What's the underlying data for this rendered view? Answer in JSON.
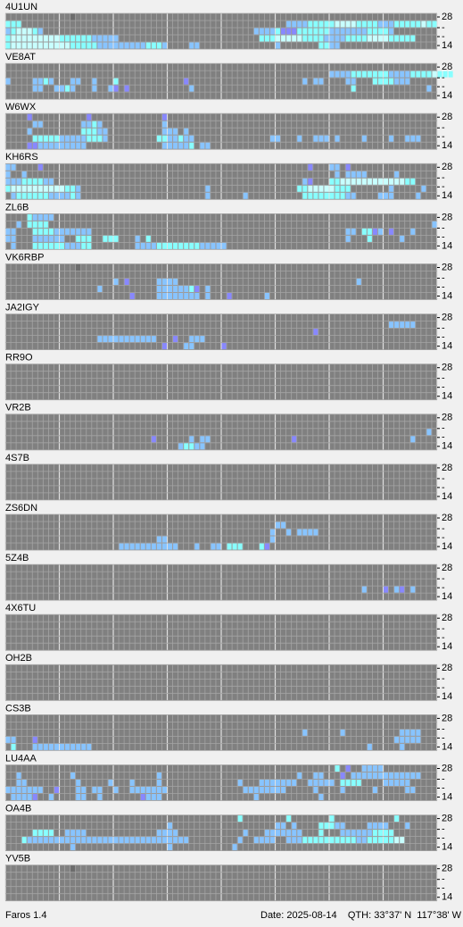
{
  "band_axis": [
    "28",
    "-",
    "-",
    "14"
  ],
  "beacons": [
    {
      "call": "4U1UN",
      "segments": [
        [
          0,
          12,
          "0"
        ],
        [
          1,
          0,
          "333"
        ],
        [
          1,
          52,
          "2222333334444333322233333433"
        ],
        [
          2,
          0,
          "2344432"
        ],
        [
          2,
          46,
          "22223111333333222222233332"
        ],
        [
          3,
          0,
          "344444444433333322222"
        ],
        [
          3,
          47,
          "33344444333322223333444433333"
        ],
        [
          4,
          0,
          "34444444444433333222221"
        ],
        [
          4,
          22,
          "22223332"
        ],
        [
          4,
          34,
          "22"
        ],
        [
          4,
          50,
          "2"
        ],
        [
          4,
          58,
          "3322"
        ]
      ]
    },
    {
      "call": "VE8AT",
      "segments": [
        [
          1,
          60,
          "22223333333222233334333"
        ],
        [
          2,
          0,
          "2"
        ],
        [
          2,
          5,
          "2232"
        ],
        [
          2,
          12,
          "22"
        ],
        [
          2,
          16,
          "2"
        ],
        [
          2,
          20,
          "3"
        ],
        [
          2,
          33,
          "1"
        ],
        [
          2,
          55,
          "2"
        ],
        [
          2,
          57,
          "22"
        ],
        [
          2,
          63,
          "22"
        ],
        [
          2,
          68,
          "3333222"
        ],
        [
          3,
          5,
          "22"
        ],
        [
          3,
          9,
          "2232"
        ],
        [
          3,
          16,
          "2"
        ],
        [
          3,
          19,
          "21"
        ],
        [
          3,
          22,
          "1"
        ],
        [
          3,
          34,
          "2"
        ],
        [
          3,
          64,
          "3"
        ],
        [
          3,
          78,
          "2"
        ]
      ]
    },
    {
      "call": "W6WX",
      "segments": [
        [
          0,
          4,
          "1"
        ],
        [
          0,
          15,
          "1"
        ],
        [
          0,
          29,
          "1"
        ],
        [
          1,
          5,
          "22"
        ],
        [
          1,
          14,
          "2232"
        ],
        [
          1,
          29,
          "2"
        ],
        [
          2,
          4,
          "2"
        ],
        [
          2,
          14,
          "33322"
        ],
        [
          2,
          29,
          "222"
        ],
        [
          2,
          33,
          "2"
        ],
        [
          3,
          5,
          "33333222223332"
        ],
        [
          3,
          28,
          "3322322"
        ],
        [
          3,
          49,
          "22"
        ],
        [
          3,
          54,
          "2"
        ],
        [
          3,
          57,
          "222"
        ],
        [
          3,
          61,
          "2"
        ],
        [
          3,
          66,
          "2"
        ],
        [
          3,
          71,
          "2"
        ],
        [
          3,
          74,
          "222"
        ],
        [
          4,
          4,
          "11222222222"
        ],
        [
          4,
          29,
          "222223"
        ],
        [
          4,
          36,
          "22"
        ]
      ]
    },
    {
      "call": "KH6RS",
      "segments": [
        [
          0,
          0,
          "22"
        ],
        [
          0,
          6,
          "1"
        ],
        [
          0,
          56,
          "1"
        ],
        [
          0,
          60,
          "22"
        ],
        [
          0,
          63,
          "1"
        ],
        [
          1,
          0,
          "2"
        ],
        [
          1,
          3,
          "2"
        ],
        [
          1,
          61,
          "2"
        ],
        [
          1,
          63,
          "2222"
        ],
        [
          1,
          72,
          "2"
        ],
        [
          2,
          0,
          "222333322"
        ],
        [
          2,
          55,
          "21"
        ],
        [
          2,
          60,
          "3344444444444433"
        ],
        [
          3,
          0,
          "34444444444332"
        ],
        [
          3,
          37,
          "2"
        ],
        [
          3,
          54,
          "3344444333"
        ],
        [
          3,
          71,
          "2"
        ],
        [
          3,
          77,
          "2"
        ],
        [
          4,
          1,
          "2333333222232"
        ],
        [
          4,
          37,
          "2"
        ],
        [
          4,
          44,
          "2"
        ],
        [
          4,
          55,
          "3333333322"
        ],
        [
          4,
          69,
          "222"
        ],
        [
          4,
          76,
          "2"
        ]
      ]
    },
    {
      "call": "ZL6B",
      "segments": [
        [
          0,
          4,
          "32222"
        ],
        [
          1,
          2,
          "2"
        ],
        [
          1,
          4,
          "3333"
        ],
        [
          1,
          79,
          "2"
        ],
        [
          2,
          0,
          "22"
        ],
        [
          2,
          5,
          "33332222222"
        ],
        [
          2,
          63,
          "22"
        ],
        [
          2,
          66,
          "3312"
        ],
        [
          2,
          71,
          "1"
        ],
        [
          2,
          75,
          "2"
        ],
        [
          3,
          0,
          "22"
        ],
        [
          3,
          5,
          "222222"
        ],
        [
          3,
          13,
          "333"
        ],
        [
          3,
          18,
          "333"
        ],
        [
          3,
          24,
          "2"
        ],
        [
          3,
          26,
          "3"
        ],
        [
          3,
          63,
          "2"
        ],
        [
          3,
          67,
          "3"
        ],
        [
          3,
          73,
          "2"
        ],
        [
          4,
          1,
          "2"
        ],
        [
          4,
          5,
          "33333322233"
        ],
        [
          4,
          24,
          "22223333333322222"
        ]
      ]
    },
    {
      "call": "VK6RBP",
      "segments": [
        [
          0,
          13,
          "0"
        ],
        [
          2,
          20,
          "2"
        ],
        [
          2,
          22,
          "1"
        ],
        [
          2,
          28,
          "2222"
        ],
        [
          2,
          65,
          "2"
        ],
        [
          3,
          17,
          "2"
        ],
        [
          3,
          28,
          "2222223"
        ],
        [
          3,
          35,
          "1"
        ],
        [
          3,
          37,
          "2"
        ],
        [
          4,
          23,
          "1"
        ],
        [
          4,
          28,
          "22222222"
        ],
        [
          4,
          37,
          "2"
        ],
        [
          4,
          41,
          "1"
        ],
        [
          4,
          48,
          "2"
        ]
      ]
    },
    {
      "call": "JA2IGY",
      "segments": [
        [
          1,
          71,
          "22222"
        ],
        [
          2,
          57,
          "1"
        ],
        [
          3,
          17,
          "22222222222"
        ],
        [
          3,
          31,
          "1"
        ],
        [
          3,
          34,
          "222"
        ],
        [
          4,
          29,
          "1"
        ],
        [
          4,
          33,
          "22"
        ],
        [
          4,
          40,
          "1"
        ]
      ]
    },
    {
      "call": "RR9O",
      "segments": []
    },
    {
      "call": "VR2B",
      "segments": [
        [
          2,
          78,
          "2"
        ],
        [
          3,
          27,
          "1"
        ],
        [
          3,
          34,
          "2"
        ],
        [
          3,
          36,
          "22"
        ],
        [
          3,
          53,
          "1"
        ],
        [
          3,
          75,
          "2"
        ],
        [
          4,
          32,
          "23322"
        ]
      ]
    },
    {
      "call": "4S7B",
      "segments": []
    },
    {
      "call": "ZS6DN",
      "segments": [
        [
          1,
          50,
          "22"
        ],
        [
          2,
          49,
          "2"
        ],
        [
          2,
          52,
          "2"
        ],
        [
          2,
          54,
          "2222"
        ],
        [
          3,
          28,
          "22"
        ],
        [
          3,
          49,
          "2"
        ],
        [
          4,
          21,
          "2222222222"
        ],
        [
          4,
          31,
          "2"
        ],
        [
          4,
          35,
          "2"
        ],
        [
          4,
          38,
          "22"
        ],
        [
          4,
          48,
          "1"
        ],
        [
          4,
          41,
          "333"
        ],
        [
          4,
          47,
          "3"
        ]
      ]
    },
    {
      "call": "5Z4B",
      "segments": [
        [
          3,
          66,
          "2"
        ],
        [
          3,
          70,
          "1"
        ],
        [
          3,
          72,
          "21"
        ],
        [
          3,
          75,
          "2"
        ]
      ]
    },
    {
      "call": "4X6TU",
      "segments": []
    },
    {
      "call": "OH2B",
      "segments": []
    },
    {
      "call": "CS3B",
      "segments": [
        [
          2,
          55,
          "2"
        ],
        [
          2,
          62,
          "2"
        ],
        [
          2,
          73,
          "2222"
        ],
        [
          3,
          0,
          "22"
        ],
        [
          3,
          5,
          "1"
        ],
        [
          3,
          72,
          "22222"
        ],
        [
          4,
          1,
          "3"
        ],
        [
          4,
          5,
          "22222222222"
        ],
        [
          4,
          67,
          "2"
        ],
        [
          4,
          73,
          "2"
        ]
      ]
    },
    {
      "call": "LU4AA",
      "segments": [
        [
          0,
          61,
          "3"
        ],
        [
          0,
          63,
          "1"
        ],
        [
          0,
          66,
          "2222"
        ],
        [
          1,
          2,
          "2"
        ],
        [
          1,
          12,
          "2"
        ],
        [
          1,
          28,
          "2"
        ],
        [
          1,
          54,
          "2"
        ],
        [
          1,
          57,
          "22"
        ],
        [
          1,
          62,
          "1"
        ],
        [
          1,
          64,
          "22222222"
        ],
        [
          1,
          72,
          "22222"
        ],
        [
          2,
          2,
          "22"
        ],
        [
          2,
          13,
          "2"
        ],
        [
          2,
          19,
          "2"
        ],
        [
          2,
          23,
          "2"
        ],
        [
          2,
          28,
          "2"
        ],
        [
          2,
          43,
          "2"
        ],
        [
          2,
          47,
          "2222222"
        ],
        [
          2,
          56,
          "22222"
        ],
        [
          2,
          62,
          "3333"
        ],
        [
          2,
          70,
          "22222"
        ],
        [
          3,
          0,
          "2222222"
        ],
        [
          3,
          9,
          "1"
        ],
        [
          3,
          13,
          "22"
        ],
        [
          3,
          16,
          "22"
        ],
        [
          3,
          20,
          "2"
        ],
        [
          3,
          23,
          "2222222"
        ],
        [
          3,
          44,
          "22222222"
        ],
        [
          3,
          57,
          "2"
        ],
        [
          3,
          62,
          "2"
        ],
        [
          3,
          68,
          "2"
        ],
        [
          3,
          74,
          "22"
        ],
        [
          4,
          1,
          "22221"
        ],
        [
          4,
          8,
          "2"
        ],
        [
          4,
          13,
          "22"
        ],
        [
          4,
          17,
          "2"
        ],
        [
          4,
          25,
          "1222"
        ],
        [
          4,
          46,
          "2"
        ],
        [
          4,
          58,
          "2"
        ]
      ]
    },
    {
      "call": "OA4B",
      "segments": [
        [
          0,
          43,
          "3"
        ],
        [
          0,
          52,
          "3"
        ],
        [
          0,
          60,
          "3"
        ],
        [
          0,
          72,
          "3"
        ],
        [
          1,
          30,
          "2"
        ],
        [
          1,
          50,
          "22"
        ],
        [
          1,
          53,
          "2"
        ],
        [
          1,
          58,
          "33322"
        ],
        [
          1,
          67,
          "2222"
        ],
        [
          1,
          74,
          "2"
        ],
        [
          2,
          5,
          "3333"
        ],
        [
          2,
          11,
          "2222"
        ],
        [
          2,
          28,
          "2222"
        ],
        [
          2,
          44,
          "2"
        ],
        [
          2,
          48,
          "2222222"
        ],
        [
          2,
          58,
          "3"
        ],
        [
          2,
          62,
          "2222223333"
        ],
        [
          3,
          3,
          "3222222222222222222222222222222"
        ],
        [
          3,
          43,
          "2"
        ],
        [
          3,
          46,
          "2222"
        ],
        [
          3,
          52,
          "2223333333333223333344"
        ],
        [
          4,
          12,
          "2"
        ],
        [
          4,
          30,
          "2"
        ],
        [
          4,
          42,
          "2"
        ]
      ]
    },
    {
      "call": "YV5B",
      "segments": [
        [
          0,
          12,
          "0"
        ]
      ]
    }
  ],
  "footer": {
    "app": "Faros 1.4",
    "date": "Date: 2025-08-14",
    "qth": "QTH: 33°37' N  117°38' W"
  }
}
